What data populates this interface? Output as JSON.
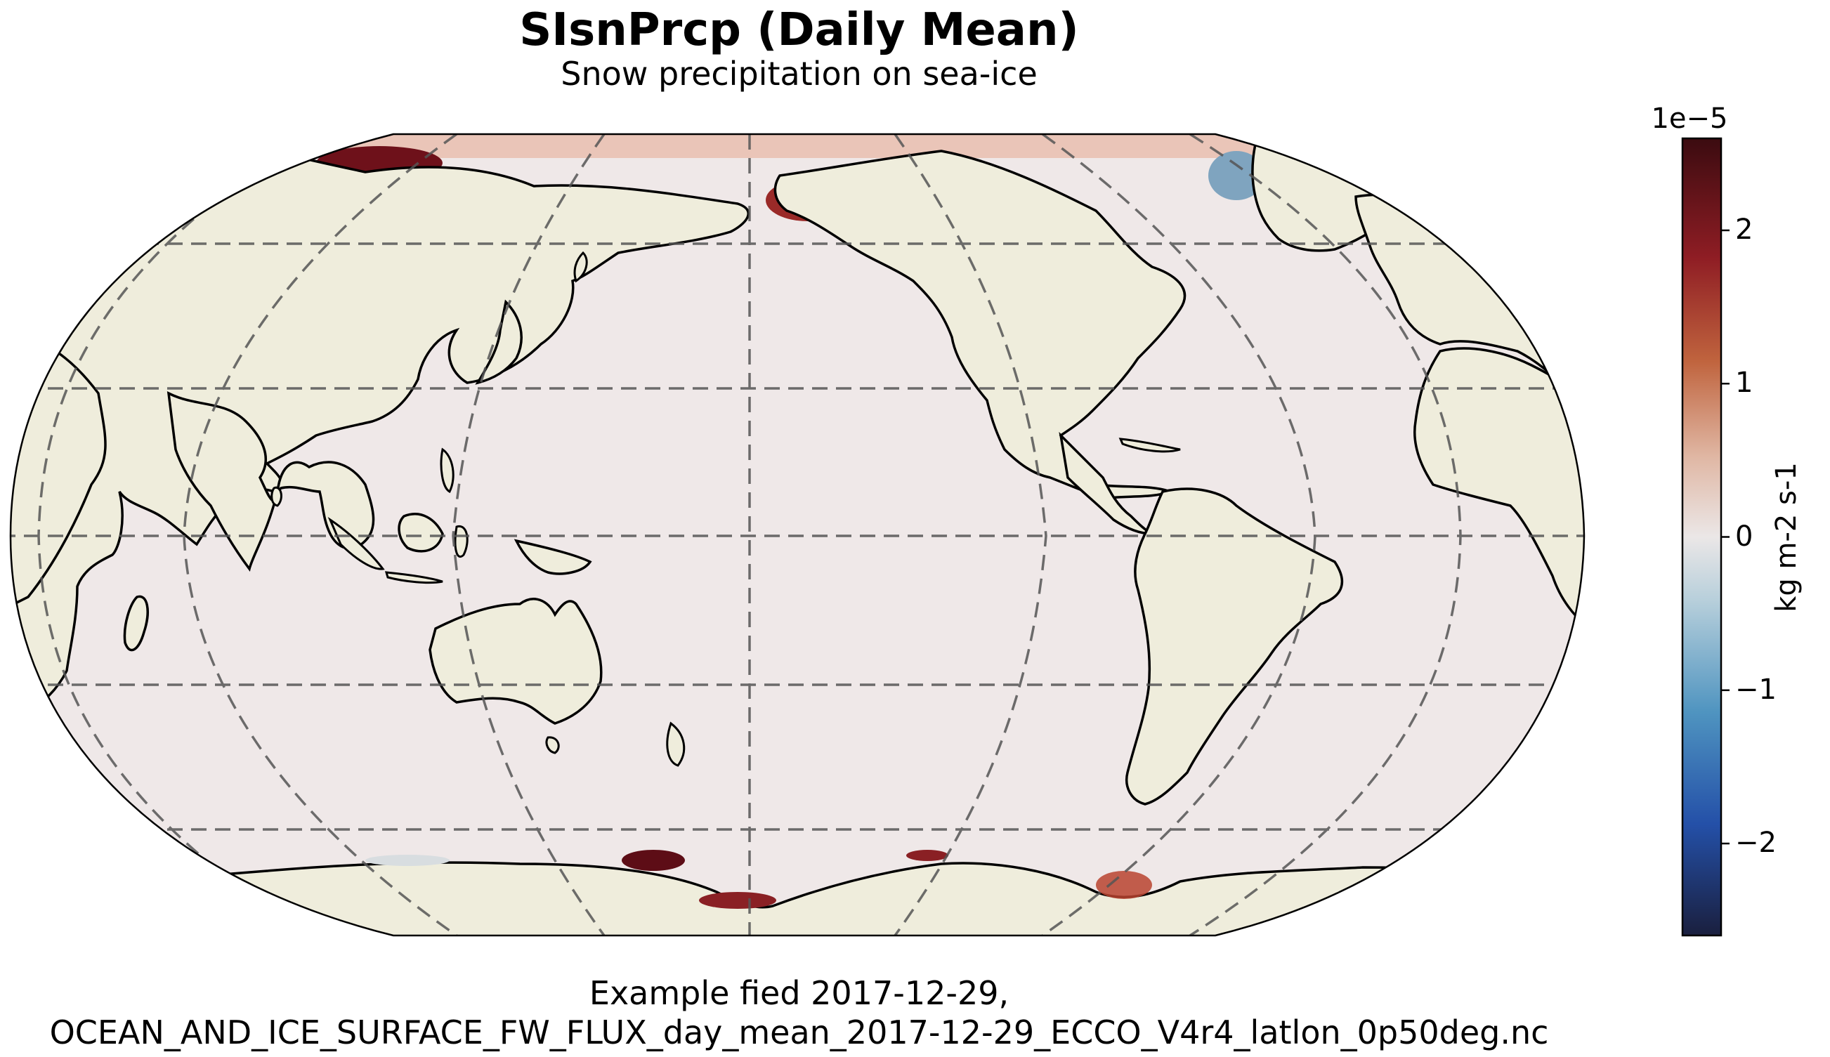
{
  "title": "SIsnPrcp (Daily Mean)",
  "subtitle": "Snow precipitation on sea-ice",
  "caption_line1": "Example fied 2017-12-29,",
  "caption_line2": "OCEAN_AND_ICE_SURFACE_FW_FLUX_day_mean_2017-12-29_ECCO_V4r4_latlon_0p50deg.nc",
  "map": {
    "projection": "Robinson",
    "central_longitude": 180,
    "gridlines": "dashed",
    "land_color": "#efeddc",
    "ocean_color": "#efe8e8",
    "coastline_color": "#000000"
  },
  "colorbar": {
    "label": "kg m-2 s-1",
    "exponent_label": "1e−5",
    "colormap": "diverging dark-blue to dark-red",
    "range": [
      -2.6,
      2.6
    ],
    "ticks": [
      {
        "value": 2,
        "label": "2"
      },
      {
        "value": 1,
        "label": "1"
      },
      {
        "value": 0,
        "label": "0"
      },
      {
        "value": -1,
        "label": "−1"
      },
      {
        "value": -2,
        "label": "−2"
      }
    ],
    "colors": [
      "#1a1f3e",
      "#2b4fa6",
      "#4f94c0",
      "#a6c6d6",
      "#ebe7e7",
      "#d9a58a",
      "#c0643e",
      "#8f1d24",
      "#3b0b10"
    ]
  }
}
